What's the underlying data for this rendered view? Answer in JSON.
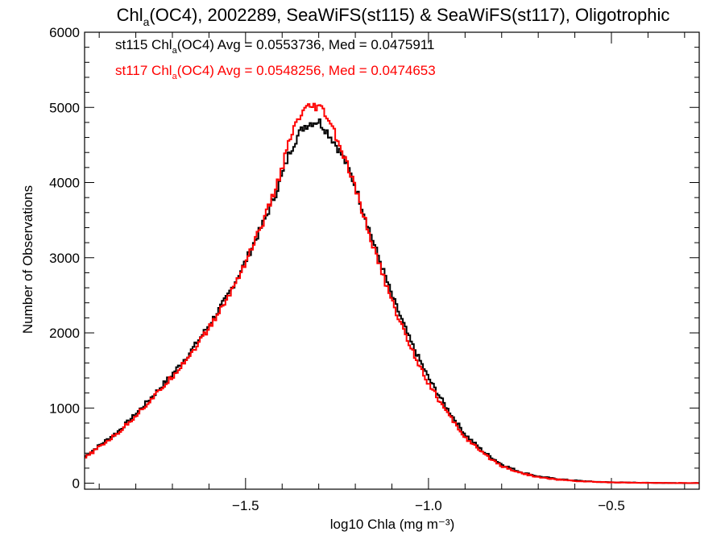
{
  "chart_data": {
    "type": "line",
    "title": "Chla(OC4), 2002289, SeaWiFS(st115) & SeaWiFS(st117), Oligotrophic",
    "title_parts": {
      "pre": "Chl",
      "sub": "a",
      "post": "(OC4), 2002289, SeaWiFS(st115) & SeaWiFS(st117), Oligotrophic"
    },
    "xlabel": "log10 Chla (mg m⁻³)",
    "ylabel": "Number of Observations",
    "xlim": [
      -1.94,
      -0.26
    ],
    "ylim": [
      -80,
      6000
    ],
    "xticks": [
      -1.5,
      -1.0,
      -0.5
    ],
    "xtick_labels": [
      "−1.5",
      "−1.0",
      "−0.5"
    ],
    "yticks": [
      0,
      1000,
      2000,
      3000,
      4000,
      5000,
      6000
    ],
    "ytick_labels": [
      "0",
      "1000",
      "2000",
      "3000",
      "4000",
      "5000",
      "6000"
    ],
    "grid": false,
    "legend_position": "top-left",
    "colors": {
      "st115": "#000000",
      "st117": "#ff0000"
    },
    "annotations": [
      {
        "series": "st115",
        "pre": "st115 Chl",
        "sub": "a",
        "post": "(OC4) Avg = 0.0553736, Med = 0.0475911",
        "color": "#000000"
      },
      {
        "series": "st117",
        "pre": "st117 Chl",
        "sub": "a",
        "post": "(OC4) Avg = 0.0548256, Med = 0.0474653",
        "color": "#ff0000"
      }
    ],
    "series": [
      {
        "name": "st115",
        "color": "#000000",
        "x": [
          -1.94,
          -1.9,
          -1.85,
          -1.8,
          -1.75,
          -1.7,
          -1.65,
          -1.6,
          -1.55,
          -1.5,
          -1.45,
          -1.42,
          -1.4,
          -1.38,
          -1.36,
          -1.34,
          -1.32,
          -1.3,
          -1.28,
          -1.26,
          -1.24,
          -1.22,
          -1.2,
          -1.18,
          -1.15,
          -1.1,
          -1.05,
          -1.0,
          -0.95,
          -0.9,
          -0.85,
          -0.8,
          -0.75,
          -0.7,
          -0.65,
          -0.6,
          -0.55,
          -0.5,
          -0.45,
          -0.4,
          -0.35,
          -0.3,
          -0.26
        ],
        "y": [
          350,
          500,
          680,
          920,
          1180,
          1450,
          1750,
          2100,
          2480,
          2950,
          3480,
          3820,
          4100,
          4400,
          4600,
          4750,
          4800,
          4820,
          4700,
          4560,
          4400,
          4200,
          3950,
          3650,
          3200,
          2500,
          1900,
          1400,
          1000,
          650,
          420,
          250,
          150,
          90,
          55,
          35,
          20,
          12,
          8,
          5,
          3,
          2,
          1
        ]
      },
      {
        "name": "st117",
        "color": "#ff0000",
        "x": [
          -1.94,
          -1.9,
          -1.85,
          -1.8,
          -1.75,
          -1.7,
          -1.65,
          -1.6,
          -1.55,
          -1.5,
          -1.45,
          -1.42,
          -1.4,
          -1.38,
          -1.36,
          -1.34,
          -1.32,
          -1.3,
          -1.28,
          -1.26,
          -1.24,
          -1.22,
          -1.2,
          -1.18,
          -1.15,
          -1.1,
          -1.05,
          -1.0,
          -0.95,
          -0.9,
          -0.85,
          -0.8,
          -0.75,
          -0.7,
          -0.65,
          -0.6,
          -0.55,
          -0.5,
          -0.45,
          -0.4,
          -0.35,
          -0.3,
          -0.26
        ],
        "y": [
          330,
          480,
          660,
          900,
          1150,
          1420,
          1720,
          2060,
          2450,
          2940,
          3500,
          3880,
          4200,
          4550,
          4800,
          4950,
          5000,
          5000,
          4900,
          4700,
          4450,
          4200,
          3920,
          3600,
          3130,
          2420,
          1820,
          1330,
          940,
          610,
          390,
          230,
          140,
          80,
          50,
          30,
          18,
          11,
          7,
          4,
          3,
          2,
          1
        ]
      }
    ]
  }
}
